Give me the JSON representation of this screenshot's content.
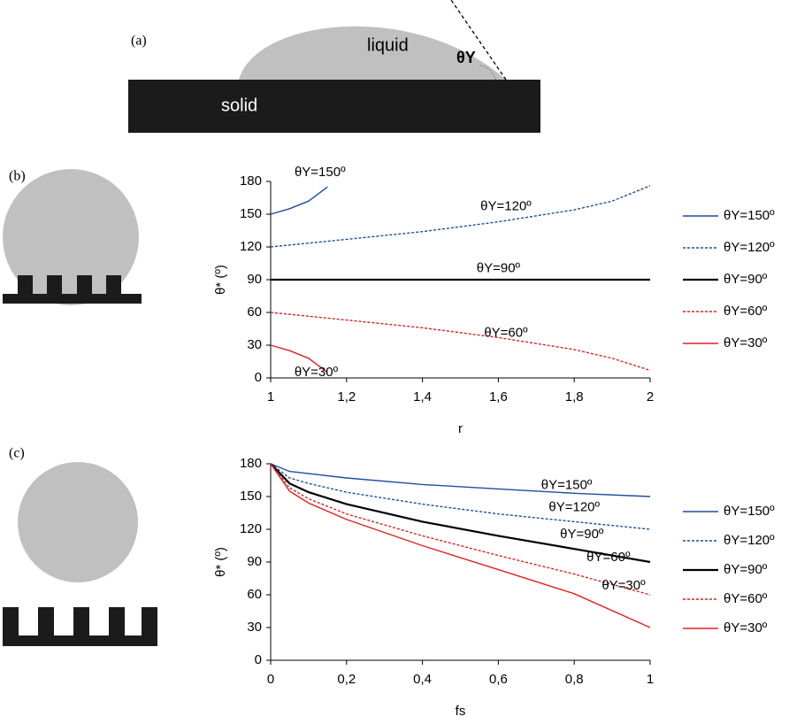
{
  "panels": {
    "a": "(a)",
    "b": "(b)",
    "c": "(c)"
  },
  "diagram": {
    "solid": "solid",
    "liquid": "liquid",
    "angle": "θY"
  },
  "chart_data": [
    {
      "type": "line",
      "xlabel": "r",
      "ylabel": "θ* (º)",
      "xlim": [
        1,
        2
      ],
      "ylim": [
        0,
        180
      ],
      "xticks": [
        1,
        {
          "value": 1.2,
          "label": "1,2"
        },
        {
          "value": 1.4,
          "label": "1,4"
        },
        {
          "value": 1.6,
          "label": "1,6"
        },
        {
          "value": 1.8,
          "label": "1,8"
        },
        2
      ],
      "yticks": [
        0,
        30,
        60,
        90,
        120,
        150,
        180
      ],
      "series": [
        {
          "name": "θY=150º",
          "color": "#1f4e9c",
          "dashed": false,
          "x": [
            1,
            1.05,
            1.1,
            1.15
          ],
          "values": [
            150,
            155,
            162,
            175
          ]
        },
        {
          "name": "θY=120º",
          "color": "#1f4e9c",
          "dashed": true,
          "x": [
            1,
            1.2,
            1.4,
            1.6,
            1.8,
            1.9,
            2
          ],
          "values": [
            120,
            127,
            134,
            143,
            154,
            162,
            176
          ]
        },
        {
          "name": "θY=90º",
          "color": "#000000",
          "dashed": false,
          "x": [
            1,
            2
          ],
          "values": [
            90,
            90
          ]
        },
        {
          "name": "θY=60º",
          "color": "#e02020",
          "dashed": true,
          "x": [
            1,
            1.2,
            1.4,
            1.6,
            1.8,
            1.9,
            2
          ],
          "values": [
            60,
            53,
            46,
            37,
            26,
            18,
            7
          ]
        },
        {
          "name": "θY=30º",
          "color": "#e02020",
          "dashed": false,
          "x": [
            1,
            1.05,
            1.1,
            1.15
          ],
          "values": [
            30,
            25,
            18,
            5
          ]
        }
      ],
      "annotations": [
        {
          "text": "θY=150º",
          "x": 1.13,
          "y": 188
        },
        {
          "text": "θY=120º",
          "x": 1.62,
          "y": 157
        },
        {
          "text": "θY=90º",
          "x": 1.6,
          "y": 100
        },
        {
          "text": "θY=60º",
          "x": 1.62,
          "y": 41
        },
        {
          "text": "θY=30º",
          "x": 1.12,
          "y": 5
        }
      ]
    },
    {
      "type": "line",
      "xlabel": "fs",
      "ylabel": "θ* (º)",
      "xlim": [
        0,
        1
      ],
      "ylim": [
        0,
        180
      ],
      "xticks": [
        0,
        {
          "value": 0.2,
          "label": "0,2"
        },
        {
          "value": 0.4,
          "label": "0,4"
        },
        {
          "value": 0.6,
          "label": "0,6"
        },
        {
          "value": 0.8,
          "label": "0,8"
        },
        1
      ],
      "yticks": [
        0,
        30,
        60,
        90,
        120,
        150,
        180
      ],
      "series": [
        {
          "name": "θY=150º",
          "color": "#1f4e9c",
          "dashed": false,
          "x": [
            0,
            0.05,
            0.1,
            0.2,
            0.4,
            0.6,
            0.8,
            1
          ],
          "values": [
            180,
            173,
            171,
            167,
            161,
            157,
            153,
            150
          ]
        },
        {
          "name": "θY=120º",
          "color": "#1f4e9c",
          "dashed": true,
          "x": [
            0,
            0.05,
            0.1,
            0.2,
            0.4,
            0.6,
            0.8,
            1
          ],
          "values": [
            180,
            167,
            162,
            154,
            143,
            134,
            127,
            120
          ]
        },
        {
          "name": "θY=90º",
          "color": "#000000",
          "dashed": false,
          "x": [
            0,
            0.05,
            0.1,
            0.2,
            0.4,
            0.6,
            0.8,
            1
          ],
          "values": [
            180,
            162,
            154,
            143,
            127,
            114,
            102,
            90
          ]
        },
        {
          "name": "θY=60º",
          "color": "#e02020",
          "dashed": true,
          "x": [
            0,
            0.05,
            0.1,
            0.2,
            0.4,
            0.6,
            0.8,
            1
          ],
          "values": [
            180,
            158,
            148,
            134,
            114,
            96,
            79,
            60
          ]
        },
        {
          "name": "θY=30º",
          "color": "#e02020",
          "dashed": false,
          "x": [
            0,
            0.05,
            0.1,
            0.2,
            0.4,
            0.6,
            0.8,
            1
          ],
          "values": [
            180,
            155,
            144,
            129,
            105,
            83,
            61,
            30
          ]
        }
      ],
      "annotations": [
        {
          "text": "θY=150º",
          "x": 0.78,
          "y": 160
        },
        {
          "text": "θY=120º",
          "x": 0.8,
          "y": 140
        },
        {
          "text": "θY=90º",
          "x": 0.82,
          "y": 115
        },
        {
          "text": "θY=60º",
          "x": 0.89,
          "y": 94
        },
        {
          "text": "θY=30º",
          "x": 0.93,
          "y": 68
        }
      ]
    }
  ]
}
